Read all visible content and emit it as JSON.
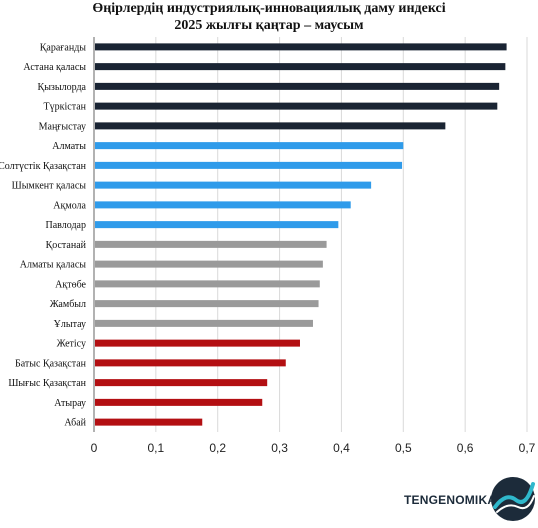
{
  "chart_data": {
    "type": "bar",
    "orientation": "horizontal",
    "title_line1": "Өңірлердің индустриялық-инновациялық даму индексі",
    "title_line2": "2025 жылғы қаңтар – маусым",
    "xlabel": "",
    "ylabel": "",
    "xlim": [
      0,
      0.7
    ],
    "xticks": [
      "0",
      "0,1",
      "0,2",
      "0,3",
      "0,4",
      "0,5",
      "0,6",
      "0,7"
    ],
    "grid": "vertical",
    "categories": [
      "Қарағанды",
      "Астана қаласы",
      "Қызылорда",
      "Түркістан",
      "Маңғыстау",
      "Алматы",
      "Солтүстік Қазақстан",
      "Шымкент қаласы",
      "Ақмола",
      "Павлодар",
      "Қостанай",
      "Алматы қаласы",
      "Ақтөбе",
      "Жамбыл",
      "Ұлытау",
      "Жетісу",
      "Батыс Қазақстан",
      "Шығыс Қазақстан",
      "Атырау",
      "Абай"
    ],
    "values": [
      0.667,
      0.665,
      0.655,
      0.652,
      0.568,
      0.5,
      0.498,
      0.448,
      0.415,
      0.395,
      0.376,
      0.37,
      0.365,
      0.363,
      0.354,
      0.333,
      0.31,
      0.28,
      0.272,
      0.175
    ],
    "colors": [
      "#1a2433",
      "#1a2433",
      "#1a2433",
      "#1a2433",
      "#1a2433",
      "#2f9bea",
      "#2f9bea",
      "#2f9bea",
      "#2f9bea",
      "#2f9bea",
      "#9a9a9a",
      "#9a9a9a",
      "#9a9a9a",
      "#9a9a9a",
      "#9a9a9a",
      "#b30f12",
      "#b30f12",
      "#b30f12",
      "#b30f12",
      "#b30f12"
    ]
  },
  "logo": {
    "text": "TENGENOMIKA",
    "colors": {
      "dark": "#1c2b3a",
      "accent": "#2fb8cc"
    }
  }
}
